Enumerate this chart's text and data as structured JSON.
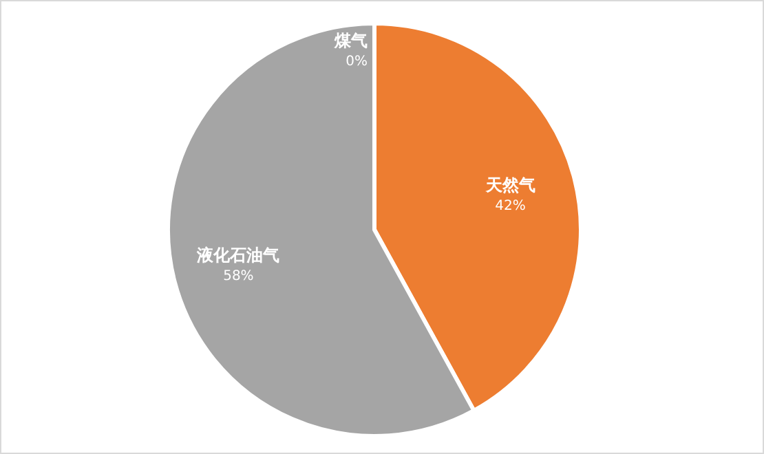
{
  "chart_data": {
    "type": "pie",
    "categories": [
      "煤气",
      "天然气",
      "液化石油气"
    ],
    "values": [
      0,
      42,
      58
    ],
    "value_labels": [
      "0%",
      "42%",
      "58%"
    ],
    "colors": [
      "#4472c4",
      "#ed7d31",
      "#a5a5a5"
    ]
  }
}
